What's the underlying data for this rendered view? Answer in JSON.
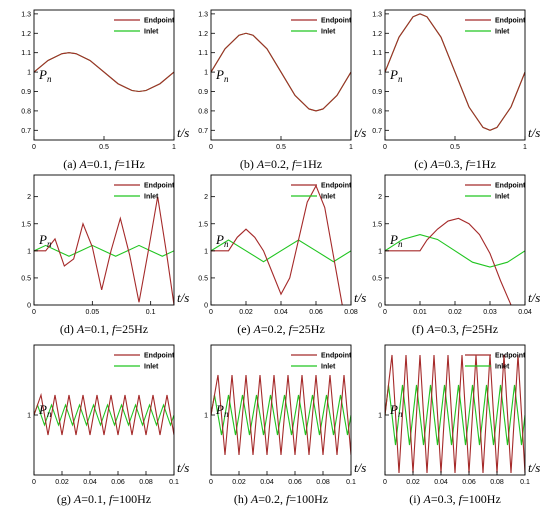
{
  "colors": {
    "endpoint": "#a52a2a",
    "inlet": "#21c521"
  },
  "chart_data": [
    {
      "id": "a",
      "type": "line",
      "caption": {
        "pre": "(a) ",
        "v1": "A",
        "m1": "=0.1, ",
        "v2": "f",
        "m2": "=1Hz"
      },
      "xlabel": "t/s",
      "ylabel": "Pn",
      "xlim": [
        0,
        1
      ],
      "ylim": [
        0.65,
        1.32
      ],
      "xticks": [
        "0",
        "0.5",
        "1"
      ],
      "xtick_values": [
        0,
        0.5,
        1
      ],
      "yticks": [
        "0.7",
        "0.8",
        "0.9",
        "1",
        "1.1",
        "1.2",
        "1.3"
      ],
      "ytick_values": [
        0.7,
        0.8,
        0.9,
        1,
        1.1,
        1.2,
        1.3
      ],
      "series": [
        {
          "name": "Endpoint",
          "x": [
            0,
            0.1,
            0.2,
            0.25,
            0.3,
            0.4,
            0.5,
            0.6,
            0.7,
            0.75,
            0.8,
            0.9,
            1.0
          ],
          "y": [
            1.0,
            1.06,
            1.095,
            1.1,
            1.095,
            1.06,
            1.0,
            0.94,
            0.905,
            0.9,
            0.905,
            0.94,
            1.0
          ]
        },
        {
          "name": "Inlet",
          "x": [
            0,
            0.1,
            0.2,
            0.25,
            0.3,
            0.4,
            0.5,
            0.6,
            0.7,
            0.75,
            0.8,
            0.9,
            1.0
          ],
          "y": [
            1.0,
            1.06,
            1.095,
            1.1,
            1.095,
            1.06,
            1.0,
            0.94,
            0.905,
            0.9,
            0.905,
            0.94,
            1.0
          ]
        }
      ]
    },
    {
      "id": "b",
      "type": "line",
      "caption": {
        "pre": "(b) ",
        "v1": "A",
        "m1": "=0.2, ",
        "v2": "f",
        "m2": "=1Hz"
      },
      "xlabel": "t/s",
      "ylabel": "Pn",
      "xlim": [
        0,
        1
      ],
      "ylim": [
        0.65,
        1.32
      ],
      "xticks": [
        "0",
        "0.5",
        "1"
      ],
      "xtick_values": [
        0,
        0.5,
        1
      ],
      "yticks": [
        "0.7",
        "0.8",
        "0.9",
        "1",
        "1.1",
        "1.2",
        "1.3"
      ],
      "ytick_values": [
        0.7,
        0.8,
        0.9,
        1,
        1.1,
        1.2,
        1.3
      ],
      "series": [
        {
          "name": "Endpoint",
          "x": [
            0,
            0.1,
            0.2,
            0.25,
            0.3,
            0.4,
            0.5,
            0.6,
            0.7,
            0.75,
            0.8,
            0.9,
            1.0
          ],
          "y": [
            1.0,
            1.12,
            1.19,
            1.2,
            1.19,
            1.12,
            1.0,
            0.88,
            0.81,
            0.8,
            0.81,
            0.88,
            1.0
          ]
        },
        {
          "name": "Inlet",
          "x": [
            0,
            0.1,
            0.2,
            0.25,
            0.3,
            0.4,
            0.5,
            0.6,
            0.7,
            0.75,
            0.8,
            0.9,
            1.0
          ],
          "y": [
            1.0,
            1.12,
            1.19,
            1.2,
            1.19,
            1.12,
            1.0,
            0.88,
            0.81,
            0.8,
            0.81,
            0.88,
            1.0
          ]
        }
      ]
    },
    {
      "id": "c",
      "type": "line",
      "caption": {
        "pre": "(c) ",
        "v1": "A",
        "m1": "=0.3, ",
        "v2": "f",
        "m2": "=1Hz"
      },
      "xlabel": "t/s",
      "ylabel": "Pn",
      "xlim": [
        0,
        1
      ],
      "ylim": [
        0.65,
        1.32
      ],
      "xticks": [
        "0",
        "0.5",
        "1"
      ],
      "xtick_values": [
        0,
        0.5,
        1
      ],
      "yticks": [
        "0.7",
        "0.8",
        "0.9",
        "1",
        "1.1",
        "1.2",
        "1.3"
      ],
      "ytick_values": [
        0.7,
        0.8,
        0.9,
        1,
        1.1,
        1.2,
        1.3
      ],
      "series": [
        {
          "name": "Endpoint",
          "x": [
            0,
            0.1,
            0.2,
            0.25,
            0.3,
            0.4,
            0.5,
            0.6,
            0.7,
            0.75,
            0.8,
            0.9,
            1.0
          ],
          "y": [
            1.0,
            1.18,
            1.285,
            1.3,
            1.285,
            1.18,
            1.0,
            0.82,
            0.715,
            0.7,
            0.715,
            0.82,
            1.0
          ]
        },
        {
          "name": "Inlet",
          "x": [
            0,
            0.1,
            0.2,
            0.25,
            0.3,
            0.4,
            0.5,
            0.6,
            0.7,
            0.75,
            0.8,
            0.9,
            1.0
          ],
          "y": [
            1.0,
            1.18,
            1.285,
            1.3,
            1.285,
            1.18,
            1.0,
            0.82,
            0.715,
            0.7,
            0.715,
            0.82,
            1.0
          ]
        }
      ]
    },
    {
      "id": "d",
      "type": "line",
      "caption": {
        "pre": "(d) ",
        "v1": "A",
        "m1": "=0.1, ",
        "v2": "f",
        "m2": "=25Hz"
      },
      "xlabel": "t/s",
      "ylabel": "Pn",
      "xlim": [
        0,
        0.12
      ],
      "ylim": [
        0,
        2.4
      ],
      "xticks": [
        "0",
        "0.05",
        "0.1"
      ],
      "xtick_values": [
        0,
        0.05,
        0.1
      ],
      "yticks": [
        "0",
        "0.5",
        "1",
        "1.5",
        "2"
      ],
      "ytick_values": [
        0,
        0.5,
        1,
        1.5,
        2
      ],
      "series": [
        {
          "name": "Endpoint",
          "x": [
            0,
            0.01,
            0.018,
            0.026,
            0.034,
            0.042,
            0.05,
            0.058,
            0.066,
            0.074,
            0.082,
            0.09,
            0.098,
            0.106,
            0.114,
            0.12
          ],
          "y": [
            1.0,
            1.0,
            1.22,
            0.72,
            0.85,
            1.5,
            1.07,
            0.28,
            1.0,
            1.6,
            0.92,
            0.05,
            1.0,
            2.0,
            0.9,
            0.0
          ]
        },
        {
          "name": "Inlet",
          "x": [
            0,
            0.01,
            0.02,
            0.03,
            0.04,
            0.05,
            0.06,
            0.07,
            0.08,
            0.09,
            0.1,
            0.11,
            0.12
          ],
          "y": [
            1.0,
            1.1,
            1.0,
            0.9,
            1.0,
            1.1,
            1.0,
            0.9,
            1.0,
            1.1,
            1.0,
            0.9,
            1.0
          ]
        }
      ]
    },
    {
      "id": "e",
      "type": "line",
      "caption": {
        "pre": "(e) ",
        "v1": "A",
        "m1": "=0.2, ",
        "v2": "f",
        "m2": "=25Hz"
      },
      "xlabel": "t/s",
      "ylabel": "Pn",
      "xlim": [
        0,
        0.08
      ],
      "ylim": [
        0,
        2.4
      ],
      "xticks": [
        "0",
        "0.02",
        "0.04",
        "0.06",
        "0.08"
      ],
      "xtick_values": [
        0,
        0.02,
        0.04,
        0.06,
        0.08
      ],
      "yticks": [
        "0",
        "0.5",
        "1",
        "1.5",
        "2"
      ],
      "ytick_values": [
        0,
        0.5,
        1,
        1.5,
        2
      ],
      "series": [
        {
          "name": "Endpoint",
          "x": [
            0,
            0.01,
            0.015,
            0.02,
            0.025,
            0.03,
            0.035,
            0.04,
            0.045,
            0.05,
            0.055,
            0.06,
            0.065,
            0.07,
            0.075
          ],
          "y": [
            1.0,
            1.0,
            1.25,
            1.4,
            1.25,
            1.0,
            0.6,
            0.2,
            0.5,
            1.2,
            1.9,
            2.2,
            1.8,
            0.9,
            0.0
          ]
        },
        {
          "name": "Inlet",
          "x": [
            0,
            0.01,
            0.02,
            0.03,
            0.04,
            0.05,
            0.06,
            0.07,
            0.08
          ],
          "y": [
            1.0,
            1.2,
            1.0,
            0.8,
            1.0,
            1.2,
            1.0,
            0.8,
            1.0
          ]
        }
      ]
    },
    {
      "id": "f",
      "type": "line",
      "caption": {
        "pre": "(f) ",
        "v1": "A",
        "m1": "=0.3, ",
        "v2": "f",
        "m2": "=25Hz"
      },
      "xlabel": "t/s",
      "ylabel": "Pn",
      "xlim": [
        0,
        0.04
      ],
      "ylim": [
        0,
        2.4
      ],
      "xticks": [
        "0",
        "0.01",
        "0.02",
        "0.03",
        "0.04"
      ],
      "xtick_values": [
        0,
        0.01,
        0.02,
        0.03,
        0.04
      ],
      "yticks": [
        "0",
        "0.5",
        "1",
        "1.5",
        "2"
      ],
      "ytick_values": [
        0,
        0.5,
        1,
        1.5,
        2
      ],
      "series": [
        {
          "name": "Endpoint",
          "x": [
            0,
            0.01,
            0.012,
            0.015,
            0.018,
            0.021,
            0.024,
            0.027,
            0.03,
            0.033,
            0.036
          ],
          "y": [
            1.0,
            1.0,
            1.2,
            1.4,
            1.55,
            1.6,
            1.5,
            1.3,
            0.95,
            0.45,
            0.0
          ]
        },
        {
          "name": "Inlet",
          "x": [
            0,
            0.005,
            0.01,
            0.015,
            0.02,
            0.025,
            0.03,
            0.035,
            0.04
          ],
          "y": [
            1.0,
            1.21,
            1.3,
            1.21,
            1.0,
            0.79,
            0.7,
            0.79,
            1.0
          ]
        }
      ]
    },
    {
      "id": "g",
      "type": "line",
      "caption": {
        "pre": "(g) ",
        "v1": "A",
        "m1": "=0.1, ",
        "v2": "f",
        "m2": "=100Hz"
      },
      "xlabel": "t/s",
      "ylabel": "Pn",
      "xlim": [
        0,
        0.1
      ],
      "ylim": [
        0.4,
        1.7
      ],
      "xticks": [
        "0",
        "0.02",
        "0.04",
        "0.06",
        "0.08",
        "0.1"
      ],
      "xtick_values": [
        0,
        0.02,
        0.04,
        0.06,
        0.08,
        0.1
      ],
      "yticks": [
        "1"
      ],
      "ytick_values": [
        1
      ],
      "series": [
        {
          "name": "Endpoint",
          "x": [
            0,
            0.005,
            0.01,
            0.015,
            0.02,
            0.025,
            0.03,
            0.035,
            0.04,
            0.045,
            0.05,
            0.055,
            0.06,
            0.065,
            0.07,
            0.075,
            0.08,
            0.085,
            0.09,
            0.095,
            0.1
          ],
          "y": [
            1.0,
            1.2,
            0.8,
            1.2,
            0.8,
            1.2,
            0.8,
            1.2,
            0.8,
            1.2,
            0.8,
            1.2,
            0.8,
            1.2,
            0.8,
            1.2,
            0.8,
            1.2,
            0.8,
            1.2,
            0.8
          ]
        },
        {
          "name": "Inlet",
          "x": [
            0,
            0.0025,
            0.0075,
            0.0125,
            0.0175,
            0.0225,
            0.0275,
            0.0325,
            0.0375,
            0.0425,
            0.0475,
            0.0525,
            0.0575,
            0.0625,
            0.0675,
            0.0725,
            0.0775,
            0.0825,
            0.0875,
            0.0925,
            0.0975,
            0.1
          ],
          "y": [
            1.0,
            1.1,
            0.9,
            1.1,
            0.9,
            1.1,
            0.9,
            1.1,
            0.9,
            1.1,
            0.9,
            1.1,
            0.9,
            1.1,
            0.9,
            1.1,
            0.9,
            1.1,
            0.9,
            1.1,
            0.9,
            1.0
          ]
        }
      ]
    },
    {
      "id": "h",
      "type": "line",
      "caption": {
        "pre": "(h) ",
        "v1": "A",
        "m1": "=0.2, ",
        "v2": "f",
        "m2": "=100Hz"
      },
      "xlabel": "t/s",
      "ylabel": "Pn",
      "xlim": [
        0,
        0.1
      ],
      "ylim": [
        0.4,
        1.7
      ],
      "xticks": [
        "0",
        "0.02",
        "0.04",
        "0.06",
        "0.08",
        "0.1"
      ],
      "xtick_values": [
        0,
        0.02,
        0.04,
        0.06,
        0.08,
        0.1
      ],
      "yticks": [
        "1"
      ],
      "ytick_values": [
        1
      ],
      "series": [
        {
          "name": "Endpoint",
          "x": [
            0,
            0.005,
            0.01,
            0.015,
            0.02,
            0.025,
            0.03,
            0.035,
            0.04,
            0.045,
            0.05,
            0.055,
            0.06,
            0.065,
            0.07,
            0.075,
            0.08,
            0.085,
            0.09,
            0.095,
            0.1
          ],
          "y": [
            1.0,
            1.4,
            0.6,
            1.4,
            0.6,
            1.4,
            0.6,
            1.4,
            0.6,
            1.4,
            0.6,
            1.4,
            0.6,
            1.4,
            0.6,
            1.4,
            0.6,
            1.4,
            0.6,
            1.4,
            0.6
          ]
        },
        {
          "name": "Inlet",
          "x": [
            0,
            0.0025,
            0.0075,
            0.0125,
            0.0175,
            0.0225,
            0.0275,
            0.0325,
            0.0375,
            0.0425,
            0.0475,
            0.0525,
            0.0575,
            0.0625,
            0.0675,
            0.0725,
            0.0775,
            0.0825,
            0.0875,
            0.0925,
            0.0975,
            0.1
          ],
          "y": [
            1.0,
            1.2,
            0.8,
            1.2,
            0.8,
            1.2,
            0.8,
            1.2,
            0.8,
            1.2,
            0.8,
            1.2,
            0.8,
            1.2,
            0.8,
            1.2,
            0.8,
            1.2,
            0.8,
            1.2,
            0.8,
            1.0
          ]
        }
      ]
    },
    {
      "id": "i",
      "type": "line",
      "caption": {
        "pre": "(i) ",
        "v1": "A",
        "m1": "=0.3, ",
        "v2": "f",
        "m2": "=100Hz"
      },
      "xlabel": "t/s",
      "ylabel": "Pn",
      "xlim": [
        0,
        0.1
      ],
      "ylim": [
        0.4,
        1.7
      ],
      "xticks": [
        "0",
        "0.02",
        "0.04",
        "0.06",
        "0.08",
        "0.1"
      ],
      "xtick_values": [
        0,
        0.02,
        0.04,
        0.06,
        0.08,
        0.1
      ],
      "yticks": [
        "1"
      ],
      "ytick_values": [
        1
      ],
      "series": [
        {
          "name": "Endpoint",
          "x": [
            0,
            0.005,
            0.01,
            0.015,
            0.02,
            0.025,
            0.03,
            0.035,
            0.04,
            0.045,
            0.05,
            0.055,
            0.06,
            0.065,
            0.07,
            0.075,
            0.08,
            0.085,
            0.09,
            0.095,
            0.1
          ],
          "y": [
            1.0,
            1.6,
            0.42,
            1.6,
            0.42,
            1.6,
            0.42,
            1.6,
            0.42,
            1.6,
            0.42,
            1.6,
            0.42,
            1.6,
            0.42,
            1.6,
            0.42,
            1.6,
            0.42,
            1.6,
            0.42
          ]
        },
        {
          "name": "Inlet",
          "x": [
            0,
            0.0025,
            0.0075,
            0.0125,
            0.0175,
            0.0225,
            0.0275,
            0.0325,
            0.0375,
            0.0425,
            0.0475,
            0.0525,
            0.0575,
            0.0625,
            0.0675,
            0.0725,
            0.0775,
            0.0825,
            0.0875,
            0.0925,
            0.0975,
            0.1
          ],
          "y": [
            1.0,
            1.3,
            0.7,
            1.3,
            0.7,
            1.3,
            0.7,
            1.3,
            0.7,
            1.3,
            0.7,
            1.3,
            0.7,
            1.3,
            0.7,
            1.3,
            0.7,
            1.3,
            0.7,
            1.3,
            0.7,
            1.0
          ]
        }
      ]
    }
  ]
}
